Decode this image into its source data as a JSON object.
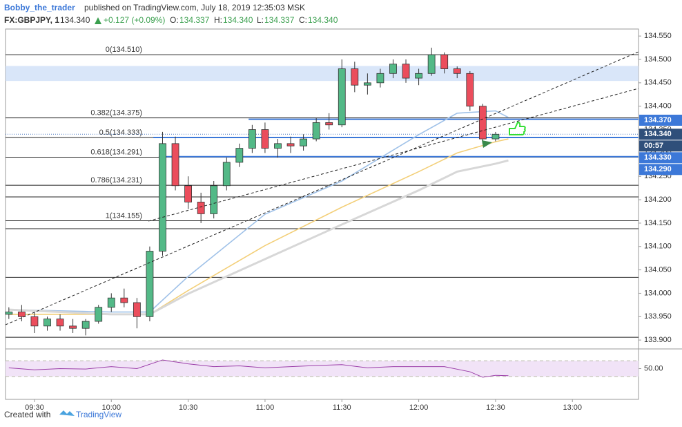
{
  "header": {
    "author": "Bobby_the_trader",
    "published": "published on TradingView.com, July 18, 2019 12:35:03 MSK",
    "symbol": "FX:GBPJPY, 1",
    "price": "134.340",
    "change": "+0.127 (+0.09%)",
    "o_label": "O:",
    "o": "134.337",
    "h_label": "H:",
    "h": "134.340",
    "l_label": "L:",
    "l": "134.337",
    "c_label": "C:",
    "c": "134.340"
  },
  "footer": {
    "created": "Created with",
    "brand": "TradingView"
  },
  "chart_data": {
    "type": "candlestick",
    "x": [
      560,
      565,
      570,
      575,
      580,
      585,
      590,
      595,
      600,
      605,
      610,
      615,
      620,
      625,
      630,
      635,
      640,
      645,
      650,
      655,
      660,
      665,
      670,
      675,
      680,
      685,
      690,
      695,
      700,
      705,
      710,
      715,
      720,
      725,
      730,
      735,
      740,
      745,
      750
    ],
    "open": [
      133.955,
      133.96,
      133.95,
      133.93,
      133.945,
      133.93,
      133.925,
      133.94,
      133.97,
      133.99,
      133.98,
      133.95,
      134.09,
      134.32,
      134.23,
      134.195,
      134.17,
      134.23,
      134.28,
      134.31,
      134.35,
      134.31,
      134.32,
      134.315,
      134.33,
      134.365,
      134.36,
      134.48,
      134.445,
      134.45,
      134.47,
      134.49,
      134.46,
      134.47,
      134.51,
      134.48,
      134.47,
      134.4,
      134.33
    ],
    "high": [
      133.97,
      133.975,
      133.96,
      133.95,
      133.955,
      133.945,
      133.945,
      133.975,
      134.0,
      134.01,
      133.99,
      134.1,
      134.345,
      134.335,
      134.25,
      134.215,
      134.24,
      134.29,
      134.32,
      134.36,
      134.365,
      134.33,
      134.335,
      134.34,
      134.375,
      134.385,
      134.5,
      134.495,
      134.47,
      134.48,
      134.5,
      134.5,
      134.48,
      134.525,
      134.515,
      134.485,
      134.475,
      134.405,
      134.345
    ],
    "low": [
      133.945,
      133.94,
      133.915,
      133.92,
      133.92,
      133.915,
      133.91,
      133.935,
      133.96,
      133.97,
      133.925,
      133.94,
      134.08,
      134.22,
      134.18,
      134.15,
      134.16,
      134.22,
      134.27,
      134.3,
      134.3,
      134.29,
      134.3,
      134.305,
      134.325,
      134.35,
      134.355,
      134.43,
      134.425,
      134.44,
      134.46,
      134.45,
      134.445,
      134.465,
      134.47,
      134.46,
      134.39,
      134.32,
      134.325
    ],
    "close": [
      133.96,
      133.95,
      133.93,
      133.945,
      133.93,
      133.925,
      133.94,
      133.97,
      133.99,
      133.98,
      133.95,
      134.09,
      134.32,
      134.23,
      134.195,
      134.17,
      134.23,
      134.28,
      134.31,
      134.35,
      134.31,
      134.32,
      134.315,
      134.33,
      134.365,
      134.36,
      134.48,
      134.445,
      134.45,
      134.47,
      134.49,
      134.46,
      134.47,
      134.51,
      134.48,
      134.47,
      134.4,
      134.33,
      134.34
    ],
    "up_color": "#53b987",
    "down_color": "#eb4d5c",
    "moving_averages": {
      "x": [
        560,
        600,
        615,
        630,
        660,
        690,
        720,
        735,
        750,
        755
      ],
      "series": [
        {
          "color": "#9fc1e8",
          "values": [
            133.965,
            133.96,
            133.96,
            134.036,
            134.169,
            134.24,
            134.339,
            134.385,
            134.39,
            134.376
          ]
        },
        {
          "color": "#f3cf78",
          "values": [
            133.955,
            133.955,
            133.955,
            134.006,
            134.102,
            134.184,
            134.26,
            134.3,
            134.324,
            134.33
          ]
        },
        {
          "color": "#d7d7d7",
          "values": [
            133.965,
            133.955,
            133.955,
            133.999,
            134.073,
            134.147,
            134.22,
            134.26,
            134.277,
            134.284
          ]
        }
      ]
    },
    "fib_levels": [
      {
        "label": "0(134.510)",
        "value": 134.51
      },
      {
        "label": "0.382(134.375)",
        "value": 134.375
      },
      {
        "label": "0.5(134.333)",
        "value": 134.333
      },
      {
        "label": "0.618(134.291)",
        "value": 134.291
      },
      {
        "label": "0.786(134.231)",
        "value": 134.231
      },
      {
        "label": "1(134.155)",
        "value": 134.155
      }
    ],
    "levels": [
      134.206,
      134.138,
      134.034,
      133.906
    ],
    "blue_lines": [
      {
        "x": 653.6,
        "value": 134.372
      },
      {
        "x": 616.4,
        "value": 134.333
      },
      {
        "x": 618.5,
        "value": 134.292
      }
    ],
    "zone": [
      134.454,
      134.486
    ],
    "price_labels": [
      {
        "label": "134.370",
        "value": 134.37,
        "color": "#3c78d8"
      },
      {
        "label": "134.340",
        "value": 134.34,
        "color": "#2f4f7a"
      },
      {
        "label": "134.330",
        "value": 134.33,
        "color": "#3c78d8"
      },
      {
        "label": "134.290",
        "value": 134.29,
        "color": "#3c78d8"
      }
    ],
    "countdown": "00:57",
    "current_price": 134.34,
    "xlim": [
      558.7,
      805.8
    ],
    "xticks": [
      {
        "value": 570,
        "label": "09:30"
      },
      {
        "value": 600,
        "label": "10:00"
      },
      {
        "value": 630,
        "label": "10:30"
      },
      {
        "value": 660,
        "label": "11:00"
      },
      {
        "value": 690,
        "label": "11:30"
      },
      {
        "value": 720,
        "label": "12:00"
      },
      {
        "value": 750,
        "label": "12:30"
      },
      {
        "value": 780,
        "label": "13:00"
      }
    ],
    "ylim": [
      133.881,
      134.565
    ],
    "yticks": [
      {
        "value": 133.9,
        "label": "133.900"
      },
      {
        "value": 133.95,
        "label": "133.950"
      },
      {
        "value": 134.0,
        "label": "134.000"
      },
      {
        "value": 134.05,
        "label": "134.050"
      },
      {
        "value": 134.1,
        "label": "134.100"
      },
      {
        "value": 134.15,
        "label": "134.150"
      },
      {
        "value": 134.2,
        "label": "134.200"
      },
      {
        "value": 134.25,
        "label": "134.250"
      },
      {
        "value": 134.3,
        "label": "134.300"
      },
      {
        "value": 134.35,
        "label": "134.350"
      },
      {
        "value": 134.4,
        "label": "134.400"
      },
      {
        "value": 134.45,
        "label": "134.450"
      },
      {
        "value": 134.5,
        "label": "134.500"
      },
      {
        "value": 134.55,
        "label": "134.550"
      }
    ],
    "rsi": {
      "x": [
        560,
        570,
        580,
        590,
        600,
        610,
        620,
        630,
        640,
        650,
        660,
        670,
        680,
        690,
        700,
        710,
        720,
        730,
        740,
        745,
        750,
        755
      ],
      "values": [
        52,
        47,
        50,
        49,
        55,
        50,
        72,
        62,
        55,
        57,
        52,
        55,
        58,
        60,
        52,
        55,
        55,
        55,
        42,
        28,
        33,
        32
      ],
      "color": "#9b3ea8",
      "ylim": [
        0,
        100
      ],
      "bands": [
        30,
        70
      ],
      "yticks": [
        {
          "value": 50,
          "label": "50.00"
        }
      ]
    }
  }
}
